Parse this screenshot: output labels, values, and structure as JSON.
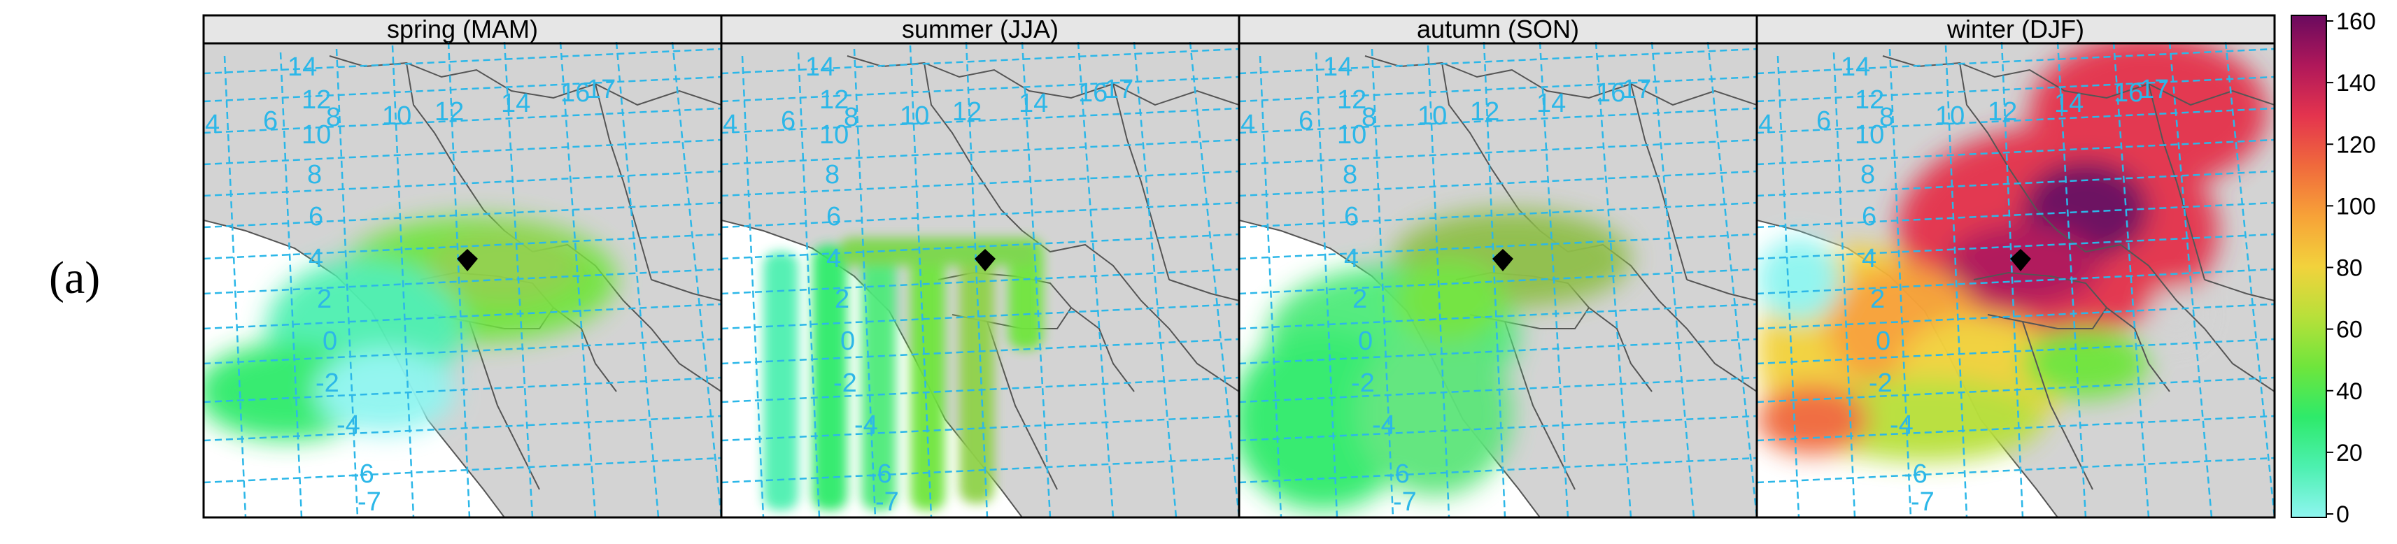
{
  "figure_label": "(a)",
  "panels": [
    {
      "title": "spring (MAM)",
      "season": "spring"
    },
    {
      "title": "summer (JJA)",
      "season": "summer"
    },
    {
      "title": "autumn (SON)",
      "season": "autumn"
    },
    {
      "title": "winter (DJF)",
      "season": "winter"
    }
  ],
  "grid_labels": [
    "14",
    "12",
    "10",
    "8",
    "6",
    "4",
    "2",
    "0",
    "-2",
    "-4",
    "-6",
    "-7",
    "4",
    "6",
    "8",
    "10",
    "12",
    "14",
    "16",
    "17"
  ],
  "colorbar": {
    "ticks": [
      "0",
      "20",
      "40",
      "60",
      "80",
      "100",
      "120",
      "140",
      "160"
    ],
    "min": 0,
    "max": 160,
    "colors": [
      "#8ff5f0",
      "#4df0b0",
      "#2eea6a",
      "#6fe53c",
      "#b8e03a",
      "#f2d23c",
      "#f7a238",
      "#f06a3c",
      "#e4344e",
      "#b0185a",
      "#6a0a5e"
    ]
  },
  "colors": {
    "land": "#d3d3d3",
    "sea": "#ffffff",
    "border": "#555555",
    "grid": "#2cb7e8",
    "site_marker": "#000000"
  }
}
